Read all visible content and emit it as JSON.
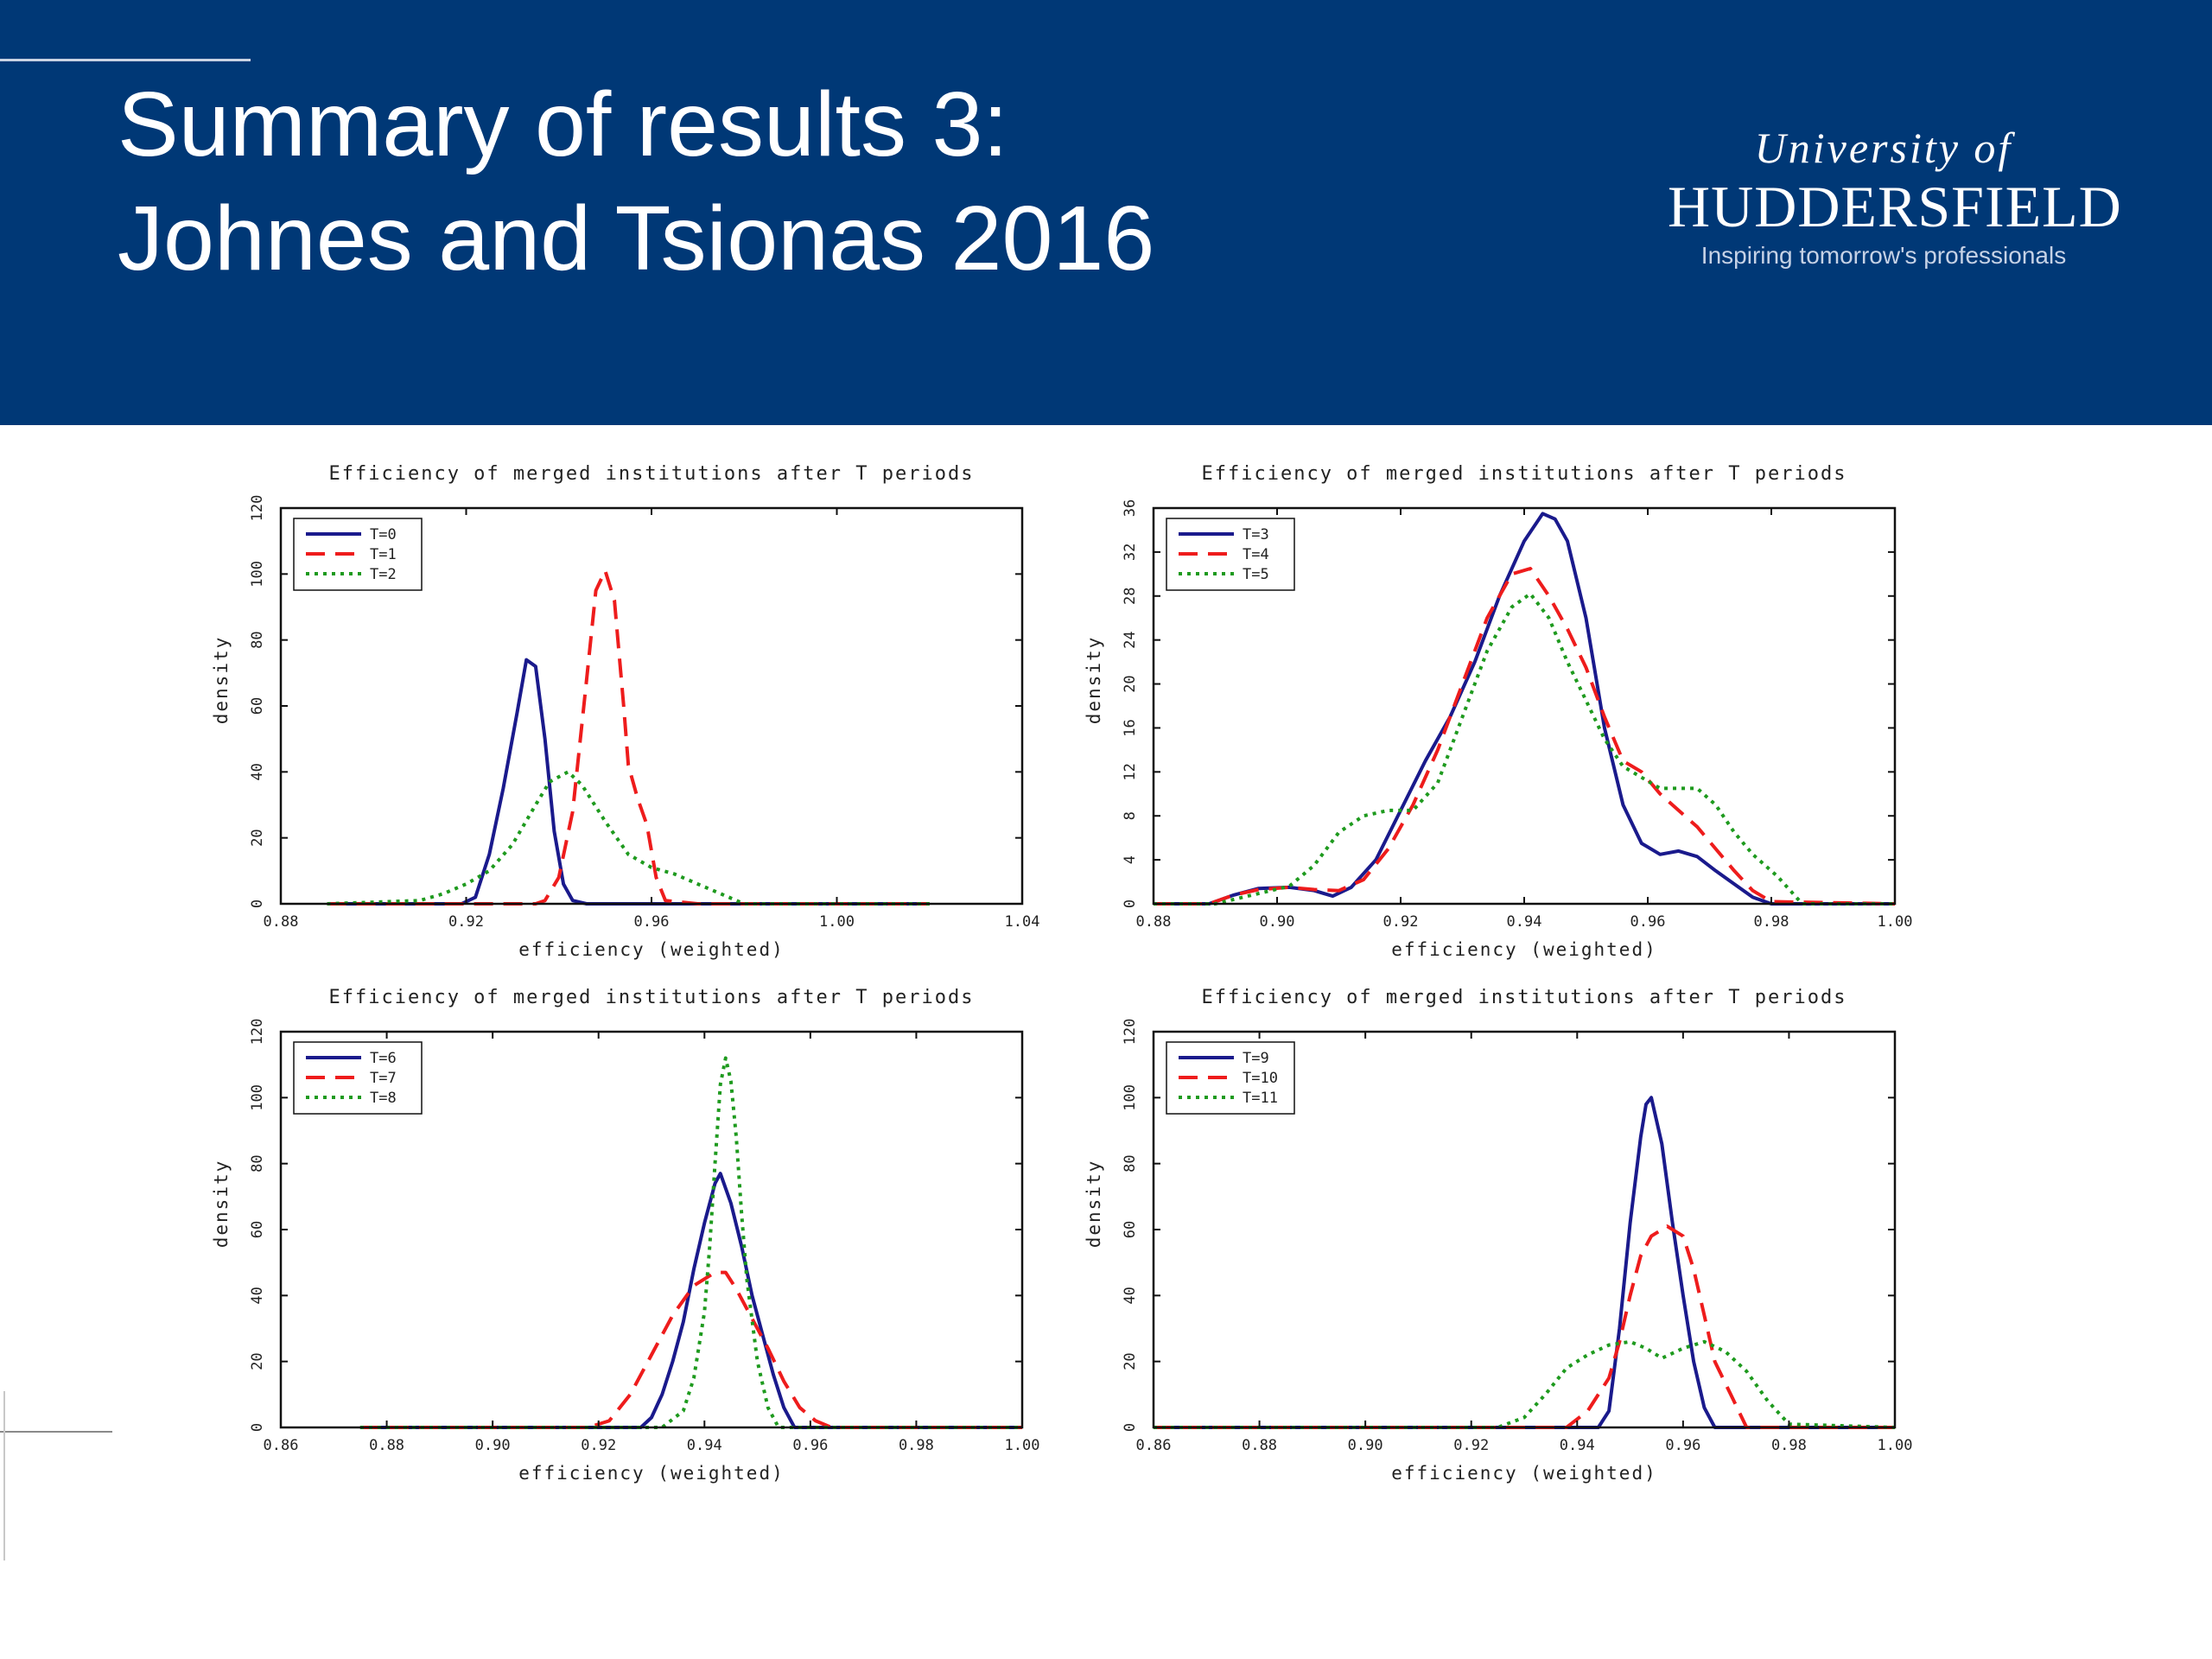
{
  "slide": {
    "title_line1": "Summary of results 3:",
    "title_line2": "Johnes and Tsionas 2016"
  },
  "logo": {
    "line1": "University of",
    "line2": "HUDDERSFIELD",
    "tagline": "Inspiring tomorrow's professionals"
  },
  "colors": {
    "banner": "#003876",
    "series": [
      "#1a1a8c",
      "#ee1c1c",
      "#1e9a1e"
    ]
  },
  "chart_data": [
    {
      "type": "line",
      "title": "Efficiency of merged institutions after T periods",
      "xlabel": "efficiency (weighted)",
      "ylabel": "density",
      "xlim": [
        0.88,
        1.04
      ],
      "ylim": [
        0,
        120
      ],
      "xticks": [
        "0.88",
        "0.92",
        "0.96",
        "1.00",
        "1.04"
      ],
      "yticks": [
        "0",
        "20",
        "40",
        "60",
        "80",
        "100",
        "120"
      ],
      "legend_position": "top-left",
      "series": [
        {
          "name": "T=0",
          "style": "solid",
          "x": [
            0.89,
            0.919,
            0.922,
            0.925,
            0.928,
            0.931,
            0.933,
            0.935,
            0.937,
            0.939,
            0.941,
            0.943,
            0.946,
            0.96,
            1.02
          ],
          "y": [
            0,
            0,
            2,
            15,
            35,
            58,
            74,
            72,
            50,
            22,
            6,
            1,
            0,
            0,
            0
          ]
        },
        {
          "name": "T=1",
          "style": "dashed",
          "x": [
            0.89,
            0.935,
            0.937,
            0.94,
            0.943,
            0.946,
            0.948,
            0.95,
            0.952,
            0.954,
            0.955,
            0.957,
            0.959,
            0.961,
            0.963,
            0.97,
            1.02
          ],
          "y": [
            0,
            0,
            1,
            8,
            28,
            68,
            95,
            101,
            92,
            60,
            42,
            32,
            24,
            8,
            1,
            0,
            0
          ]
        },
        {
          "name": "T=2",
          "style": "dotted",
          "x": [
            0.89,
            0.91,
            0.915,
            0.92,
            0.925,
            0.93,
            0.935,
            0.938,
            0.942,
            0.945,
            0.95,
            0.955,
            0.96,
            0.965,
            0.97,
            0.975,
            0.98,
            1.02
          ],
          "y": [
            0,
            1,
            3,
            6,
            10,
            18,
            30,
            37,
            40,
            36,
            25,
            15,
            11,
            9,
            6,
            3,
            0,
            0
          ]
        }
      ]
    },
    {
      "type": "line",
      "title": "Efficiency of merged institutions after T periods",
      "xlabel": "efficiency (weighted)",
      "ylabel": "density",
      "xlim": [
        0.88,
        1.0
      ],
      "ylim": [
        0,
        36
      ],
      "xticks": [
        "0.88",
        "0.90",
        "0.92",
        "0.94",
        "0.96",
        "0.98",
        "1.00"
      ],
      "yticks": [
        "0",
        "4",
        "8",
        "12",
        "16",
        "20",
        "24",
        "28",
        "32",
        "36"
      ],
      "legend_position": "top-left",
      "series": [
        {
          "name": "T=3",
          "style": "solid",
          "x": [
            0.88,
            0.889,
            0.893,
            0.897,
            0.902,
            0.906,
            0.909,
            0.912,
            0.916,
            0.92,
            0.924,
            0.928,
            0.932,
            0.936,
            0.94,
            0.943,
            0.945,
            0.947,
            0.95,
            0.953,
            0.956,
            0.959,
            0.962,
            0.965,
            0.968,
            0.971,
            0.974,
            0.977,
            0.98,
            1.0
          ],
          "y": [
            0,
            0,
            0.8,
            1.4,
            1.5,
            1.2,
            0.7,
            1.5,
            4,
            8.5,
            13,
            17,
            22,
            28,
            33,
            35.5,
            35,
            33,
            26,
            16,
            9,
            5.5,
            4.5,
            4.8,
            4.3,
            3,
            1.8,
            0.6,
            0,
            0
          ]
        },
        {
          "name": "T=4",
          "style": "dashed",
          "x": [
            0.88,
            0.889,
            0.893,
            0.897,
            0.902,
            0.906,
            0.91,
            0.914,
            0.918,
            0.922,
            0.926,
            0.93,
            0.934,
            0.938,
            0.941,
            0.944,
            0.947,
            0.95,
            0.953,
            0.956,
            0.959,
            0.962,
            0.965,
            0.968,
            0.971,
            0.974,
            0.977,
            0.98,
            1.0
          ],
          "y": [
            0,
            0,
            0.8,
            1.3,
            1.5,
            1.3,
            1.2,
            2.2,
            5,
            9,
            14,
            20,
            26,
            30,
            30.5,
            28,
            25,
            21.5,
            17,
            13,
            12,
            10,
            8.5,
            7,
            5,
            3,
            1.2,
            0.2,
            0
          ]
        },
        {
          "name": "T=5",
          "style": "dotted",
          "x": [
            0.88,
            0.89,
            0.896,
            0.902,
            0.906,
            0.91,
            0.914,
            0.918,
            0.922,
            0.926,
            0.93,
            0.934,
            0.938,
            0.941,
            0.944,
            0.947,
            0.95,
            0.953,
            0.956,
            0.959,
            0.962,
            0.965,
            0.968,
            0.971,
            0.974,
            0.977,
            0.981,
            0.985,
            1.0
          ],
          "y": [
            0,
            0,
            0.8,
            1.6,
            3.5,
            6.5,
            8,
            8.5,
            8.5,
            11,
            17,
            23,
            27,
            28.2,
            26,
            22,
            18.5,
            15,
            12.5,
            11.5,
            10.5,
            10.5,
            10.5,
            9,
            6.5,
            4.5,
            2.5,
            0,
            0
          ]
        }
      ]
    },
    {
      "type": "line",
      "title": "Efficiency of merged institutions after T periods",
      "xlabel": "efficiency (weighted)",
      "ylabel": "density",
      "xlim": [
        0.86,
        1.0
      ],
      "ylim": [
        0,
        120
      ],
      "xticks": [
        "0.86",
        "0.88",
        "0.90",
        "0.92",
        "0.94",
        "0.96",
        "0.98",
        "1.00"
      ],
      "yticks": [
        "0",
        "20",
        "40",
        "60",
        "80",
        "100",
        "120"
      ],
      "legend_position": "top-left",
      "series": [
        {
          "name": "T=6",
          "style": "solid",
          "x": [
            0.875,
            0.928,
            0.93,
            0.932,
            0.934,
            0.936,
            0.938,
            0.94,
            0.942,
            0.943,
            0.945,
            0.947,
            0.949,
            0.951,
            0.953,
            0.955,
            0.957,
            1.0
          ],
          "y": [
            0,
            0,
            3,
            10,
            20,
            32,
            48,
            62,
            74,
            77,
            68,
            55,
            40,
            28,
            16,
            6,
            0,
            0
          ]
        },
        {
          "name": "T=7",
          "style": "dashed",
          "x": [
            0.875,
            0.918,
            0.922,
            0.926,
            0.93,
            0.934,
            0.938,
            0.942,
            0.944,
            0.946,
            0.948,
            0.952,
            0.955,
            0.958,
            0.961,
            0.964,
            1.0
          ],
          "y": [
            0,
            0,
            2,
            10,
            22,
            34,
            43,
            47,
            47,
            42,
            36,
            24,
            14,
            6,
            2,
            0,
            0
          ]
        },
        {
          "name": "T=8",
          "style": "dotted",
          "x": [
            0.875,
            0.932,
            0.936,
            0.938,
            0.94,
            0.941,
            0.942,
            0.943,
            0.944,
            0.945,
            0.946,
            0.947,
            0.948,
            0.95,
            0.952,
            0.954,
            1.0
          ],
          "y": [
            0,
            0,
            5,
            15,
            35,
            55,
            80,
            104,
            112,
            105,
            88,
            65,
            45,
            20,
            6,
            0,
            0
          ]
        }
      ]
    },
    {
      "type": "line",
      "title": "Efficiency of merged institutions after T periods",
      "xlabel": "efficiency (weighted)",
      "ylabel": "density",
      "xlim": [
        0.86,
        1.0
      ],
      "ylim": [
        0,
        120
      ],
      "xticks": [
        "0.86",
        "0.88",
        "0.90",
        "0.92",
        "0.94",
        "0.96",
        "0.98",
        "1.00"
      ],
      "yticks": [
        "0",
        "20",
        "40",
        "60",
        "80",
        "100",
        "120"
      ],
      "legend_position": "top-left",
      "series": [
        {
          "name": "T=9",
          "style": "solid",
          "x": [
            0.86,
            0.944,
            0.946,
            0.948,
            0.95,
            0.952,
            0.953,
            0.954,
            0.956,
            0.958,
            0.96,
            0.962,
            0.964,
            0.966,
            1.0
          ],
          "y": [
            0,
            0,
            5,
            30,
            62,
            88,
            98,
            100,
            86,
            62,
            40,
            20,
            6,
            0,
            0
          ]
        },
        {
          "name": "T=10",
          "style": "dashed",
          "x": [
            0.86,
            0.938,
            0.942,
            0.946,
            0.948,
            0.95,
            0.952,
            0.954,
            0.957,
            0.96,
            0.962,
            0.964,
            0.966,
            0.969,
            0.972,
            1.0
          ],
          "y": [
            0,
            0,
            5,
            15,
            26,
            40,
            52,
            58,
            61,
            58,
            48,
            34,
            20,
            10,
            0,
            0
          ]
        },
        {
          "name": "T=11",
          "style": "dotted",
          "x": [
            0.86,
            0.925,
            0.93,
            0.934,
            0.938,
            0.942,
            0.946,
            0.95,
            0.953,
            0.956,
            0.96,
            0.964,
            0.968,
            0.972,
            0.976,
            0.98,
            1.0
          ],
          "y": [
            0,
            0,
            3,
            10,
            18,
            22,
            25,
            26,
            24,
            21,
            24,
            26,
            23,
            17,
            8,
            1,
            0
          ]
        }
      ]
    }
  ]
}
